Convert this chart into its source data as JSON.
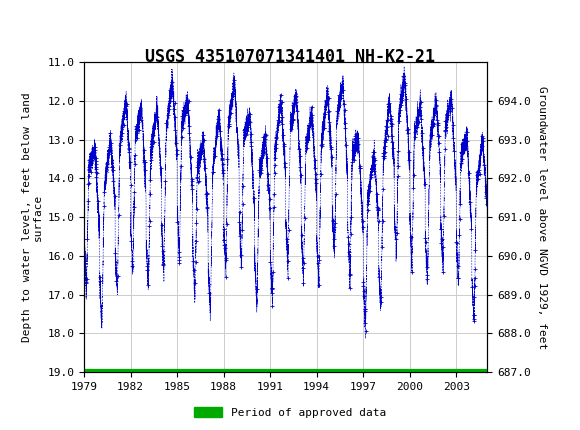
{
  "title": "USGS 435107071341401 NH-K2-21",
  "ylabel_left": "Depth to water level, feet below land\nsurface",
  "ylabel_right": "Groundwater level above NGVD 1929, feet",
  "ylim_left": [
    19.0,
    11.0
  ],
  "ylim_right": [
    687.0,
    695.0
  ],
  "xlim": [
    1979,
    2005
  ],
  "yticks_left": [
    11.0,
    12.0,
    13.0,
    14.0,
    15.0,
    16.0,
    17.0,
    18.0,
    19.0
  ],
  "yticks_right": [
    687.0,
    688.0,
    689.0,
    690.0,
    691.0,
    692.0,
    693.0,
    694.0
  ],
  "xticks": [
    1979,
    1982,
    1985,
    1988,
    1991,
    1994,
    1997,
    2000,
    2003
  ],
  "header_color": "#1a6b3c",
  "data_color": "#0000cc",
  "approved_color": "#00aa00",
  "legend_label": "Period of approved data",
  "background_color": "#ffffff",
  "plot_bg_color": "#ffffff",
  "title_fontsize": 12,
  "axis_fontsize": 8,
  "tick_fontsize": 8
}
